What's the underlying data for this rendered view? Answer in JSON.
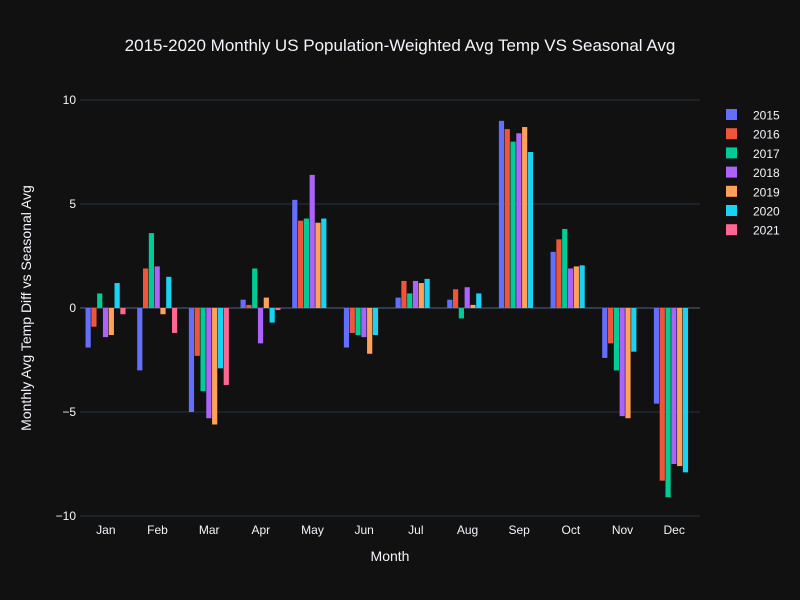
{
  "chart_data": {
    "type": "bar",
    "title": "2015-2020 Monthly US Population-Weighted Avg Temp VS Seasonal Avg",
    "xlabel": "Month",
    "ylabel": "Monthly Avg Temp Diff vs Seasonal Avg",
    "ylim": [
      -10,
      11
    ],
    "yticks": [
      10,
      5,
      0,
      -5,
      -10
    ],
    "grid": true,
    "legend_placement": "right",
    "categories": [
      "Jan",
      "Feb",
      "Mar",
      "Apr",
      "May",
      "Jun",
      "Jul",
      "Aug",
      "Sep",
      "Oct",
      "Nov",
      "Dec"
    ],
    "series": [
      {
        "name": "2015",
        "color": "#636efa",
        "values": [
          -1.9,
          -3.0,
          -5.0,
          0.4,
          5.2,
          -1.9,
          0.5,
          0.4,
          9.0,
          2.7,
          -2.4,
          -4.6
        ]
      },
      {
        "name": "2016",
        "color": "#ef553b",
        "values": [
          -0.9,
          1.9,
          -2.3,
          0.15,
          4.2,
          -1.2,
          1.3,
          0.9,
          8.6,
          3.3,
          -1.7,
          -8.3
        ]
      },
      {
        "name": "2017",
        "color": "#00cc96",
        "values": [
          0.7,
          3.6,
          -4.0,
          1.9,
          4.3,
          -1.3,
          0.7,
          -0.5,
          8.0,
          3.8,
          -3.0,
          -9.1
        ]
      },
      {
        "name": "2018",
        "color": "#ab63fa",
        "values": [
          -1.4,
          2.0,
          -5.3,
          -1.7,
          6.4,
          -1.4,
          1.3,
          1.0,
          8.4,
          1.9,
          -5.2,
          -7.5
        ]
      },
      {
        "name": "2019",
        "color": "#ffa15a",
        "values": [
          -1.3,
          -0.3,
          -5.6,
          0.5,
          4.1,
          -2.2,
          1.2,
          0.15,
          8.7,
          2.0,
          -5.3,
          -7.6
        ]
      },
      {
        "name": "2020",
        "color": "#19d3f3",
        "values": [
          1.2,
          1.5,
          -2.9,
          -0.7,
          4.3,
          -1.3,
          1.4,
          0.7,
          7.5,
          2.05,
          -2.1,
          -7.9
        ]
      },
      {
        "name": "2021",
        "color": "#ff6692",
        "values": [
          -0.3,
          -1.2,
          -3.7,
          -0.1,
          null,
          null,
          null,
          null,
          null,
          null,
          null,
          null
        ]
      }
    ]
  }
}
